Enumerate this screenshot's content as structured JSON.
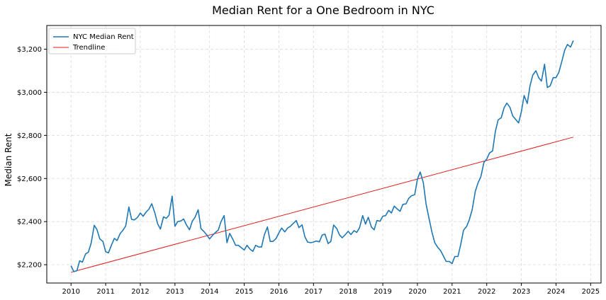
{
  "chart_data": {
    "type": "line",
    "title": "Median Rent for a One Bedroom in NYC",
    "xlabel": "",
    "ylabel": "Median Rent",
    "xlim": [
      2009.3,
      2025.3
    ],
    "ylim": [
      2115,
      3310
    ],
    "x_ticks": [
      "2010",
      "2011",
      "2012",
      "2013",
      "2014",
      "2015",
      "2016",
      "2017",
      "2018",
      "2019",
      "2020",
      "2021",
      "2022",
      "2023",
      "2024",
      "2025"
    ],
    "y_ticks": [
      2200,
      2400,
      2600,
      2800,
      3000,
      3200
    ],
    "y_tick_labels": [
      "$2,200",
      "$2,400",
      "$2,600",
      "$2,800",
      "$3,000",
      "$3,200"
    ],
    "grid": true,
    "legend_position": "top-left",
    "series": [
      {
        "name": "NYC Median Rent",
        "color": "#1f77b4",
        "x": [
          2010.0,
          2010.08,
          2010.17,
          2010.25,
          2010.33,
          2010.42,
          2010.5,
          2010.58,
          2010.67,
          2010.75,
          2010.83,
          2010.92,
          2011.0,
          2011.08,
          2011.17,
          2011.25,
          2011.33,
          2011.42,
          2011.5,
          2011.58,
          2011.67,
          2011.75,
          2011.83,
          2011.92,
          2012.0,
          2012.08,
          2012.17,
          2012.25,
          2012.33,
          2012.42,
          2012.5,
          2012.58,
          2012.67,
          2012.75,
          2012.83,
          2012.92,
          2013.0,
          2013.08,
          2013.17,
          2013.25,
          2013.33,
          2013.42,
          2013.5,
          2013.58,
          2013.67,
          2013.75,
          2013.83,
          2013.92,
          2014.0,
          2014.08,
          2014.17,
          2014.25,
          2014.33,
          2014.42,
          2014.5,
          2014.58,
          2014.67,
          2014.75,
          2014.83,
          2014.92,
          2015.0,
          2015.08,
          2015.17,
          2015.25,
          2015.33,
          2015.42,
          2015.5,
          2015.58,
          2015.67,
          2015.75,
          2015.83,
          2015.92,
          2016.0,
          2016.08,
          2016.17,
          2016.25,
          2016.33,
          2016.42,
          2016.5,
          2016.58,
          2016.67,
          2016.75,
          2016.83,
          2016.92,
          2017.0,
          2017.08,
          2017.17,
          2017.25,
          2017.33,
          2017.42,
          2017.5,
          2017.58,
          2017.67,
          2017.75,
          2017.83,
          2017.92,
          2018.0,
          2018.08,
          2018.17,
          2018.25,
          2018.33,
          2018.42,
          2018.5,
          2018.58,
          2018.67,
          2018.75,
          2018.83,
          2018.92,
          2019.0,
          2019.08,
          2019.17,
          2019.25,
          2019.33,
          2019.42,
          2019.5,
          2019.58,
          2019.67,
          2019.75,
          2019.83,
          2019.92,
          2020.0,
          2020.08,
          2020.17,
          2020.25,
          2020.33,
          2020.42,
          2020.5,
          2020.58,
          2020.67,
          2020.75,
          2020.83,
          2020.92,
          2021.0,
          2021.08,
          2021.17,
          2021.25,
          2021.33,
          2021.42,
          2021.5,
          2021.58,
          2021.67,
          2021.75,
          2021.83,
          2021.92,
          2022.0,
          2022.08,
          2022.17,
          2022.25,
          2022.33,
          2022.42,
          2022.5,
          2022.58,
          2022.67,
          2022.75,
          2022.83,
          2022.92,
          2023.0,
          2023.08,
          2023.17,
          2023.25,
          2023.33,
          2023.42,
          2023.5,
          2023.58,
          2023.67,
          2023.75,
          2023.83,
          2023.92,
          2024.0,
          2024.08,
          2024.17,
          2024.25,
          2024.33,
          2024.42,
          2024.5
        ],
        "values": [
          2195,
          2168,
          2172,
          2218,
          2212,
          2250,
          2258,
          2300,
          2383,
          2362,
          2320,
          2308,
          2260,
          2255,
          2292,
          2322,
          2312,
          2345,
          2360,
          2380,
          2468,
          2410,
          2408,
          2420,
          2440,
          2425,
          2445,
          2458,
          2483,
          2440,
          2390,
          2365,
          2422,
          2415,
          2430,
          2518,
          2378,
          2400,
          2403,
          2412,
          2385,
          2362,
          2402,
          2420,
          2455,
          2368,
          2355,
          2338,
          2320,
          2335,
          2350,
          2360,
          2400,
          2428,
          2302,
          2345,
          2318,
          2290,
          2290,
          2278,
          2268,
          2290,
          2272,
          2262,
          2290,
          2282,
          2282,
          2338,
          2375,
          2308,
          2308,
          2322,
          2348,
          2370,
          2352,
          2370,
          2378,
          2392,
          2405,
          2372,
          2385,
          2330,
          2305,
          2302,
          2305,
          2310,
          2306,
          2338,
          2342,
          2298,
          2308,
          2384,
          2368,
          2338,
          2325,
          2340,
          2355,
          2340,
          2358,
          2350,
          2372,
          2428,
          2388,
          2420,
          2375,
          2362,
          2405,
          2402,
          2425,
          2428,
          2452,
          2440,
          2472,
          2458,
          2448,
          2480,
          2482,
          2508,
          2520,
          2525,
          2598,
          2630,
          2580,
          2480,
          2418,
          2350,
          2302,
          2282,
          2265,
          2240,
          2215,
          2215,
          2205,
          2238,
          2238,
          2295,
          2360,
          2378,
          2410,
          2455,
          2540,
          2580,
          2608,
          2675,
          2690,
          2718,
          2728,
          2818,
          2872,
          2882,
          2928,
          2950,
          2930,
          2890,
          2875,
          2858,
          2910,
          2985,
          2948,
          3030,
          3080,
          3100,
          3068,
          3052,
          3130,
          3022,
          3030,
          3068,
          3068,
          3092,
          3145,
          3195,
          3222,
          3210,
          3240
        ]
      },
      {
        "name": "Trendline",
        "color": "#e11d1d",
        "x": [
          2010.0,
          2024.5
        ],
        "values": [
          2165,
          2792
        ]
      }
    ]
  }
}
